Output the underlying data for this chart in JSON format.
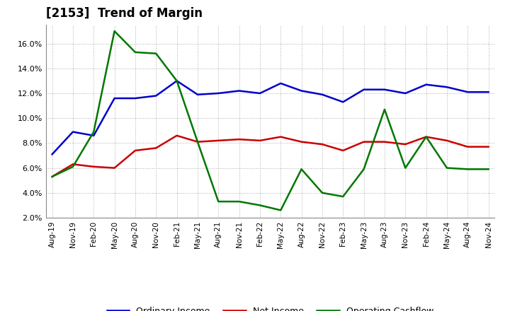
{
  "title": "[2153]  Trend of Margin",
  "x_labels": [
    "Aug-19",
    "Nov-19",
    "Feb-20",
    "May-20",
    "Aug-20",
    "Nov-20",
    "Feb-21",
    "May-21",
    "Aug-21",
    "Nov-21",
    "Feb-22",
    "May-22",
    "Aug-22",
    "Nov-22",
    "Feb-23",
    "May-23",
    "Aug-23",
    "Nov-23",
    "Feb-24",
    "May-24",
    "Aug-24",
    "Nov-24"
  ],
  "ordinary_income": [
    7.1,
    8.9,
    8.6,
    11.6,
    11.6,
    11.8,
    13.0,
    11.9,
    12.0,
    12.2,
    12.0,
    12.8,
    12.2,
    11.9,
    11.3,
    12.3,
    12.3,
    12.0,
    12.7,
    12.5,
    12.1,
    12.1
  ],
  "net_income": [
    5.3,
    6.3,
    6.1,
    6.0,
    7.4,
    7.6,
    8.6,
    8.1,
    8.2,
    8.3,
    8.2,
    8.5,
    8.1,
    7.9,
    7.4,
    8.1,
    8.1,
    7.9,
    8.5,
    8.2,
    7.7,
    7.7
  ],
  "operating_cashflow": [
    5.3,
    6.1,
    8.9,
    17.0,
    15.3,
    15.2,
    13.0,
    8.1,
    3.3,
    3.3,
    3.0,
    2.6,
    5.9,
    4.0,
    3.7,
    5.9,
    10.7,
    6.0,
    8.5,
    6.0,
    5.9,
    5.9
  ],
  "ylim": [
    2.0,
    17.5
  ],
  "yticks": [
    2.0,
    4.0,
    6.0,
    8.0,
    10.0,
    12.0,
    14.0,
    16.0
  ],
  "colors": {
    "ordinary_income": "#0000cc",
    "net_income": "#cc0000",
    "operating_cashflow": "#007700"
  },
  "background_color": "#ffffff",
  "grid_color": "#999999"
}
